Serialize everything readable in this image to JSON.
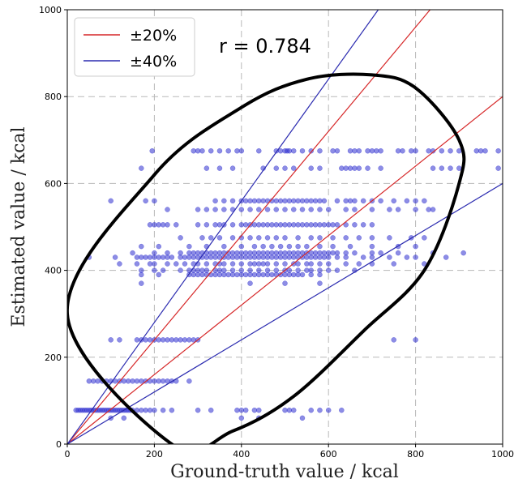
{
  "chart_data": {
    "type": "scatter",
    "xlabel": "Ground-truth value / kcal",
    "ylabel": "Estimated value / kcal",
    "xlim": [
      0,
      1000
    ],
    "ylim": [
      0,
      1000
    ],
    "xticks": [
      0,
      200,
      400,
      600,
      800,
      1000
    ],
    "yticks": [
      0,
      200,
      400,
      600,
      800,
      1000
    ],
    "grid": true,
    "grid_style": "dashed",
    "annotation": "r = 0.784",
    "legend": {
      "placement": "top-left",
      "entries": [
        {
          "label": "±20%",
          "color": "#d62728"
        },
        {
          "label": "±40%",
          "color": "#2b2bb0"
        }
      ]
    },
    "reference_lines": [
      {
        "name": "±20%",
        "color": "#d62728",
        "slopes": [
          1.2,
          0.8
        ]
      },
      {
        "name": "±40%",
        "color": "#2b2bb0",
        "slopes": [
          1.4,
          0.6
        ]
      }
    ],
    "ellipse": {
      "color": "#000000",
      "points": [
        [
          0,
          300
        ],
        [
          200,
          620
        ],
        [
          400,
          775
        ],
        [
          550,
          840
        ],
        [
          700,
          850
        ],
        [
          800,
          820
        ],
        [
          900,
          700
        ],
        [
          900,
          600
        ],
        [
          820,
          400
        ],
        [
          680,
          260
        ],
        [
          520,
          110
        ],
        [
          380,
          30
        ],
        [
          240,
          0
        ]
      ]
    },
    "point_color": "#2f2fd0",
    "rows": [
      {
        "y": 675,
        "xs": [
          195,
          290,
          300,
          310,
          330,
          350,
          370,
          390,
          400,
          440,
          480,
          490,
          500,
          505,
          510,
          520,
          540,
          560,
          580,
          610,
          620,
          650,
          660,
          670,
          690,
          700,
          710,
          720,
          760,
          770,
          790,
          800,
          830,
          840,
          860,
          880,
          900,
          940,
          950,
          960,
          990
        ]
      },
      {
        "y": 635,
        "xs": [
          170,
          320,
          350,
          380,
          450,
          480,
          500,
          520,
          560,
          580,
          630,
          640,
          650,
          660,
          670,
          690,
          720,
          840,
          860,
          880,
          900,
          990
        ]
      },
      {
        "y": 560,
        "xs": [
          100,
          180,
          200,
          340,
          360,
          380,
          400,
          410,
          420,
          430,
          440,
          450,
          460,
          470,
          480,
          490,
          500,
          510,
          520,
          530,
          540,
          550,
          560,
          570,
          580,
          590,
          620,
          640,
          650,
          660,
          680,
          700,
          720,
          750,
          780,
          800,
          820
        ]
      },
      {
        "y": 540,
        "xs": [
          230,
          300,
          320,
          340,
          360,
          380,
          400,
          420,
          440,
          460,
          480,
          500,
          520,
          540,
          560,
          580,
          600,
          640,
          660,
          700,
          740,
          760,
          800,
          830,
          840
        ]
      },
      {
        "y": 505,
        "xs": [
          190,
          200,
          210,
          220,
          230,
          250,
          300,
          320,
          340,
          350,
          360,
          380,
          400,
          410,
          420,
          430,
          440,
          450,
          460,
          470,
          480,
          490,
          500,
          510,
          520,
          530,
          540,
          550,
          560,
          570,
          580,
          590,
          600,
          610,
          620,
          640,
          660,
          680,
          700
        ]
      },
      {
        "y": 475,
        "xs": [
          260,
          310,
          330,
          350,
          380,
          400,
          420,
          440,
          460,
          480,
          500,
          530,
          560,
          580,
          610,
          640,
          670,
          700,
          740,
          790,
          820
        ]
      },
      {
        "y": 455,
        "xs": [
          170,
          210,
          280,
          320,
          360,
          400,
          430,
          450,
          470,
          490,
          510,
          530,
          550,
          580,
          610,
          650,
          700,
          760,
          800
        ]
      },
      {
        "y": 440,
        "xs": [
          150,
          200,
          230,
          260,
          280,
          290,
          300,
          310,
          320,
          330,
          340,
          350,
          360,
          370,
          380,
          390,
          400,
          410,
          420,
          430,
          440,
          450,
          460,
          470,
          480,
          490,
          500,
          510,
          520,
          530,
          540,
          550,
          560,
          570,
          580,
          590,
          600,
          610,
          620,
          640,
          660,
          700,
          720,
          760,
          840,
          910
        ]
      },
      {
        "y": 430,
        "xs": [
          50,
          110,
          160,
          170,
          180,
          190,
          200,
          210,
          220,
          230,
          240,
          260,
          270,
          280,
          290,
          300,
          310,
          320,
          330,
          340,
          350,
          360,
          370,
          380,
          390,
          400,
          410,
          420,
          430,
          440,
          450,
          460,
          470,
          480,
          490,
          500,
          510,
          520,
          530,
          540,
          550,
          560,
          570,
          580,
          590,
          600,
          620,
          640,
          680,
          700,
          740,
          780,
          800,
          870
        ]
      },
      {
        "y": 415,
        "xs": [
          120,
          160,
          190,
          200,
          230,
          250,
          270,
          290,
          300,
          320,
          340,
          350,
          360,
          380,
          400,
          420,
          430,
          440,
          450,
          460,
          480,
          500,
          520,
          530,
          550,
          560,
          580,
          600,
          640,
          670,
          700,
          750,
          820
        ]
      },
      {
        "y": 400,
        "xs": [
          170,
          200,
          220,
          260,
          280,
          290,
          300,
          310,
          320,
          340,
          350,
          360,
          380,
          400,
          420,
          440,
          460,
          480,
          500,
          510,
          530,
          550,
          560,
          580,
          600,
          620,
          660
        ]
      },
      {
        "y": 390,
        "xs": [
          170,
          210,
          280,
          290,
          300,
          310,
          320,
          330,
          340,
          350,
          360,
          370,
          380,
          390,
          400,
          410,
          420,
          430,
          440,
          450,
          460,
          470,
          480,
          490,
          500,
          510,
          520,
          530,
          540,
          560,
          580
        ]
      },
      {
        "y": 370,
        "xs": [
          170,
          420,
          500,
          580
        ]
      },
      {
        "y": 240,
        "xs": [
          100,
          120,
          160,
          170,
          180,
          190,
          200,
          210,
          220,
          230,
          240,
          250,
          260,
          270,
          280,
          290,
          300,
          750,
          800
        ]
      },
      {
        "y": 145,
        "xs": [
          50,
          60,
          70,
          80,
          90,
          100,
          110,
          120,
          130,
          140,
          150,
          160,
          170,
          180,
          190,
          200,
          210,
          220,
          230,
          240,
          250,
          280
        ]
      },
      {
        "y": 78,
        "xs": [
          20,
          25,
          30,
          35,
          40,
          45,
          50,
          55,
          60,
          65,
          70,
          75,
          80,
          85,
          90,
          95,
          100,
          105,
          110,
          115,
          120,
          125,
          130,
          135,
          140,
          145,
          150,
          160,
          170,
          180,
          190,
          200,
          220,
          240,
          300,
          330,
          390,
          400,
          410,
          430,
          440,
          500,
          510,
          520,
          560,
          580,
          600,
          630
        ]
      },
      {
        "y": 60,
        "xs": [
          100,
          130,
          400,
          440,
          540
        ]
      }
    ]
  }
}
